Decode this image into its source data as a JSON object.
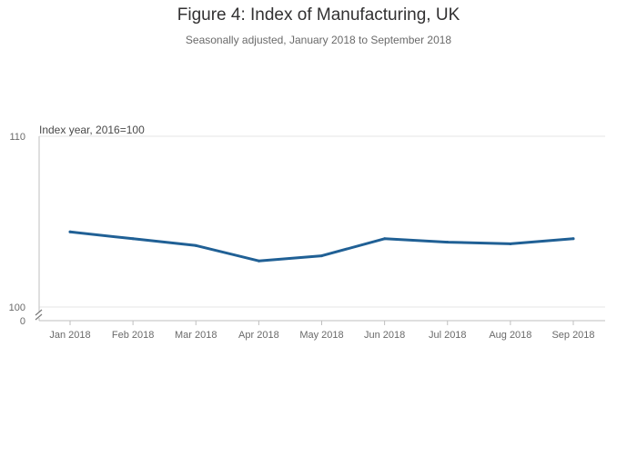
{
  "title": "Figure 4: Index of Manufacturing, UK",
  "subtitle": "Seasonally adjusted, January 2018 to September 2018",
  "colors": {
    "line": "#206095",
    "axis": "#bfbfbf",
    "grid": "#e6e6e6",
    "text": "#323132",
    "tick": "#6a6a6a"
  },
  "chart_data": {
    "type": "line",
    "title": "Figure 4: Index of Manufacturing, UK",
    "subtitle": "Seasonally adjusted, January 2018 to September 2018",
    "ylabel": "Index year, 2016=100",
    "xlabel": "",
    "categories": [
      "Jan 2018",
      "Feb 2018",
      "Mar 2018",
      "Apr 2018",
      "May 2018",
      "Jun 2018",
      "Jul 2018",
      "Aug 2018",
      "Sep 2018"
    ],
    "series": [
      {
        "name": "",
        "values": [
          104.4,
          104.0,
          103.6,
          102.7,
          103.0,
          104.0,
          103.8,
          103.7,
          104.0
        ]
      }
    ],
    "ylim": [
      100,
      110
    ],
    "yticks": [
      "110",
      "100",
      "0"
    ],
    "axis_break": true,
    "grid": true,
    "legend": "none"
  }
}
